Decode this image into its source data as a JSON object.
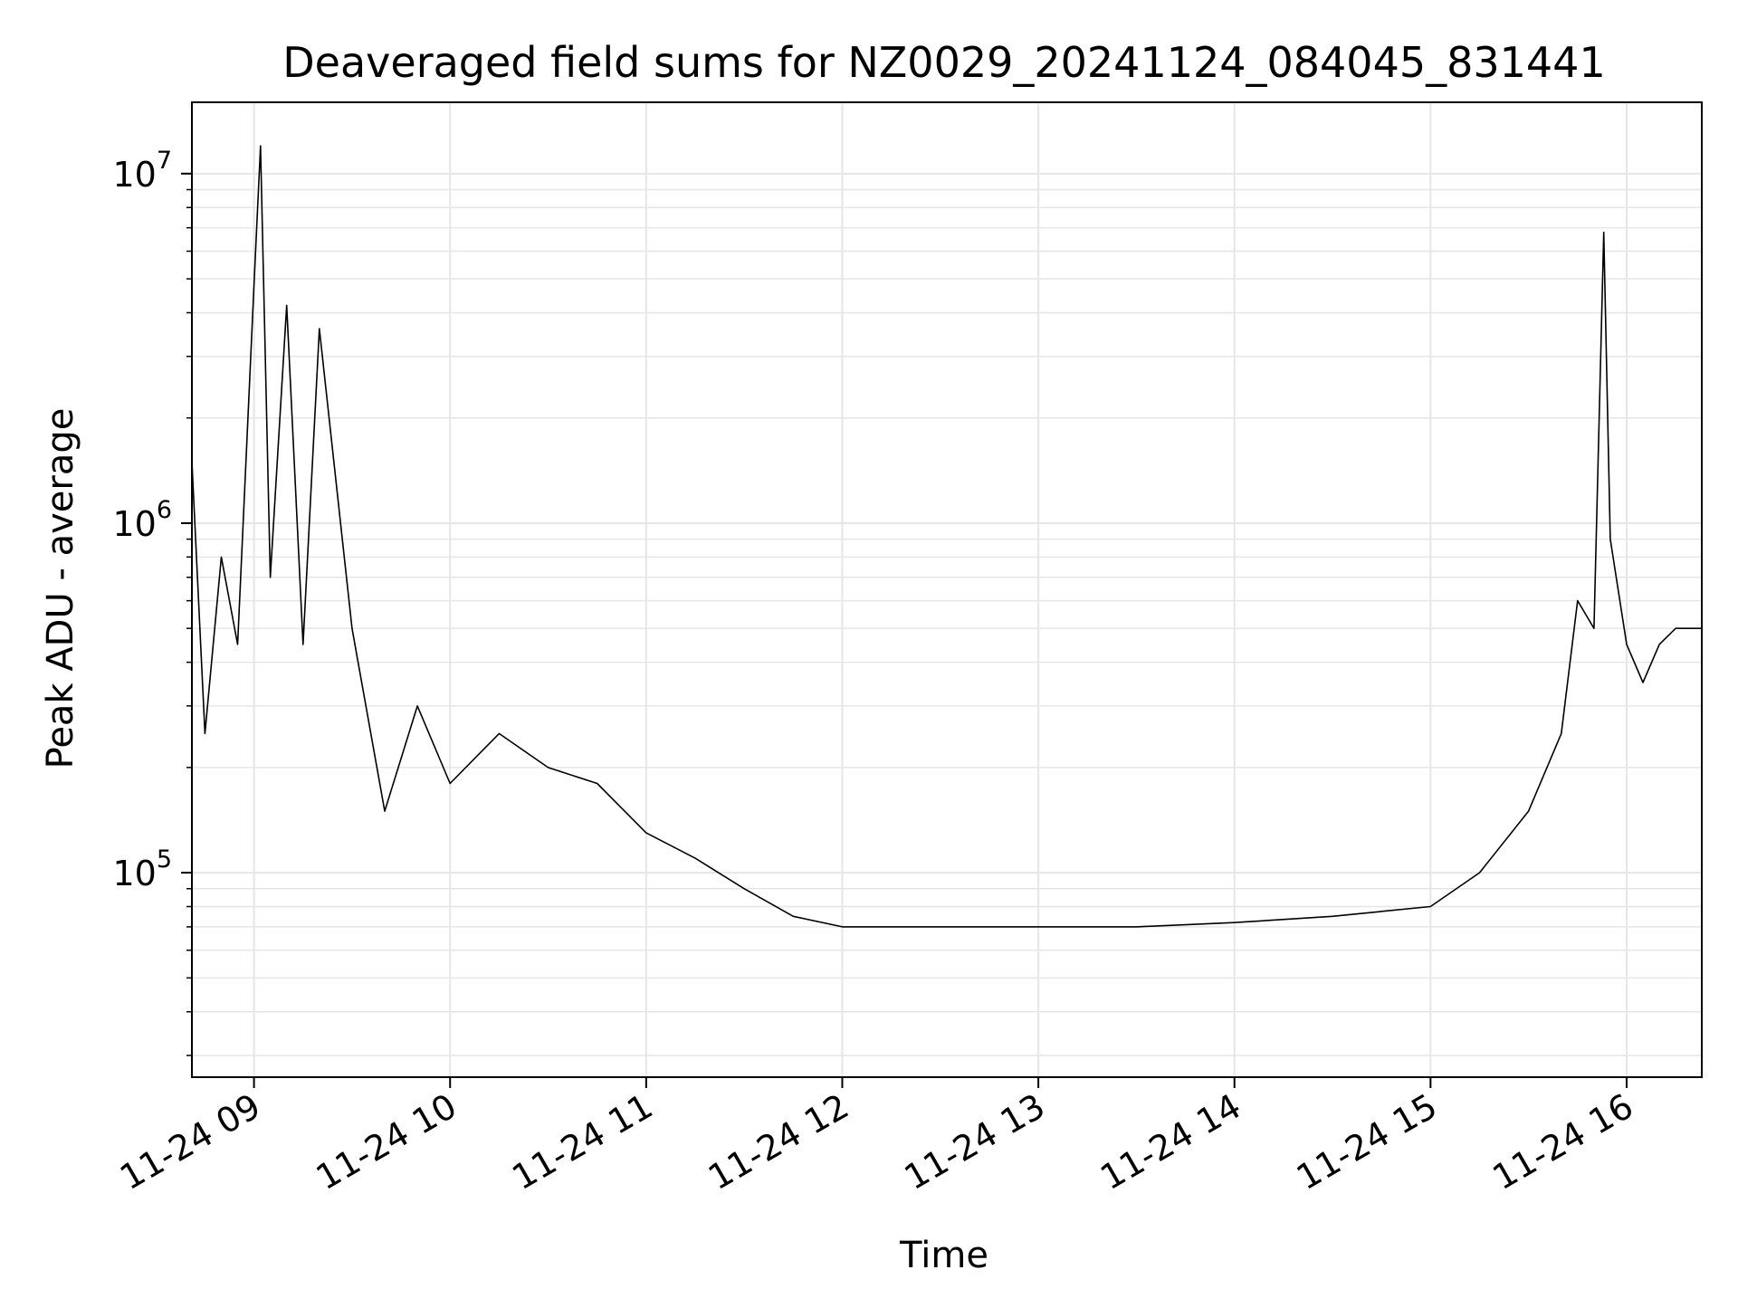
{
  "chart_data": {
    "type": "line",
    "title": "Deaveraged field sums for NZ0029_20241124_084045_831441",
    "xlabel": "Time",
    "ylabel": "Peak ADU - average",
    "y_scale": "log",
    "ylim": [
      26000,
      16000000
    ],
    "x_range": [
      "2024-11-24 08:41",
      "2024-11-24 16:23"
    ],
    "grid": true,
    "line_color": "#000000",
    "grid_color": "#e6e6e6",
    "x_ticks": [
      {
        "time": "2024-11-24 09:00",
        "label": "11-24 09"
      },
      {
        "time": "2024-11-24 10:00",
        "label": "11-24 10"
      },
      {
        "time": "2024-11-24 11:00",
        "label": "11-24 11"
      },
      {
        "time": "2024-11-24 12:00",
        "label": "11-24 12"
      },
      {
        "time": "2024-11-24 13:00",
        "label": "11-24 13"
      },
      {
        "time": "2024-11-24 14:00",
        "label": "11-24 14"
      },
      {
        "time": "2024-11-24 15:00",
        "label": "11-24 15"
      },
      {
        "time": "2024-11-24 16:00",
        "label": "11-24 16"
      }
    ],
    "y_ticks": [
      {
        "value": 100000,
        "base": "10",
        "exponent": "5"
      },
      {
        "value": 1000000,
        "base": "10",
        "exponent": "6"
      },
      {
        "value": 10000000,
        "base": "10",
        "exponent": "7"
      }
    ],
    "series": [
      {
        "points": [
          [
            "2024-11-24 08:41",
            1500000
          ],
          [
            "2024-11-24 08:45",
            250000
          ],
          [
            "2024-11-24 08:50",
            800000
          ],
          [
            "2024-11-24 08:55",
            450000
          ],
          [
            "2024-11-24 09:00",
            4800000
          ],
          [
            "2024-11-24 09:02",
            12000000
          ],
          [
            "2024-11-24 09:05",
            700000
          ],
          [
            "2024-11-24 09:10",
            4200000
          ],
          [
            "2024-11-24 09:15",
            450000
          ],
          [
            "2024-11-24 09:20",
            3600000
          ],
          [
            "2024-11-24 09:30",
            500000
          ],
          [
            "2024-11-24 09:40",
            150000
          ],
          [
            "2024-11-24 09:50",
            300000
          ],
          [
            "2024-11-24 10:00",
            180000
          ],
          [
            "2024-11-24 10:15",
            250000
          ],
          [
            "2024-11-24 10:30",
            200000
          ],
          [
            "2024-11-24 10:45",
            180000
          ],
          [
            "2024-11-24 11:00",
            130000
          ],
          [
            "2024-11-24 11:15",
            110000
          ],
          [
            "2024-11-24 11:30",
            90000
          ],
          [
            "2024-11-24 11:45",
            75000
          ],
          [
            "2024-11-24 12:00",
            70000
          ],
          [
            "2024-11-24 12:30",
            70000
          ],
          [
            "2024-11-24 13:00",
            70000
          ],
          [
            "2024-11-24 13:30",
            70000
          ],
          [
            "2024-11-24 14:00",
            72000
          ],
          [
            "2024-11-24 14:30",
            75000
          ],
          [
            "2024-11-24 15:00",
            80000
          ],
          [
            "2024-11-24 15:15",
            100000
          ],
          [
            "2024-11-24 15:30",
            150000
          ],
          [
            "2024-11-24 15:40",
            250000
          ],
          [
            "2024-11-24 15:45",
            600000
          ],
          [
            "2024-11-24 15:50",
            500000
          ],
          [
            "2024-11-24 15:53",
            6800000
          ],
          [
            "2024-11-24 15:55",
            900000
          ],
          [
            "2024-11-24 16:00",
            450000
          ],
          [
            "2024-11-24 16:05",
            350000
          ],
          [
            "2024-11-24 16:10",
            450000
          ],
          [
            "2024-11-24 16:15",
            500000
          ],
          [
            "2024-11-24 16:23",
            500000
          ]
        ]
      }
    ]
  }
}
